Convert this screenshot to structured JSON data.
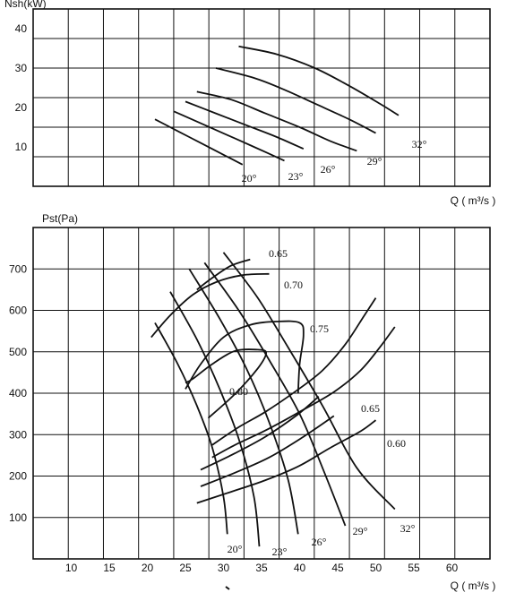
{
  "chart_data": [
    {
      "type": "line",
      "title": "",
      "ylabel": "Nsh(kW)",
      "xlabel": "Q ( m³/s )",
      "ylim": [
        0,
        45
      ],
      "xlim": [
        5,
        65
      ],
      "grid": true,
      "y_ticks": [
        "10",
        "20",
        "30",
        "40"
      ],
      "series": [
        {
          "name": "20°",
          "label": "20°",
          "points": [
            [
              21,
              17
            ],
            [
              24,
              14
            ],
            [
              27,
              11
            ],
            [
              30,
              8
            ],
            [
              32.5,
              5.5
            ]
          ]
        },
        {
          "name": "23°",
          "label": "23°",
          "points": [
            [
              23.5,
              19
            ],
            [
              27,
              16
            ],
            [
              30.5,
              13
            ],
            [
              34,
              10
            ],
            [
              38,
              6.5
            ]
          ]
        },
        {
          "name": "26°",
          "label": "26°",
          "points": [
            [
              25,
              21.5
            ],
            [
              29,
              18.5
            ],
            [
              33,
              15.5
            ],
            [
              37,
              12.5
            ],
            [
              40.5,
              9.5
            ]
          ]
        },
        {
          "name": "29°",
          "label": "29°",
          "points": [
            [
              26.5,
              24
            ],
            [
              31,
              22
            ],
            [
              35.5,
              18.5
            ],
            [
              40,
              15
            ],
            [
              44,
              11.5
            ],
            [
              47.5,
              9
            ]
          ]
        },
        {
          "name": "32°",
          "label": "32°",
          "points": [
            [
              29,
              30
            ],
            [
              34,
              27.5
            ],
            [
              38,
              24.5
            ],
            [
              42,
              21
            ],
            [
              46.5,
              17
            ],
            [
              50,
              13.5
            ]
          ]
        },
        {
          "name": "",
          "label": "",
          "points": [
            [
              32,
              35.5
            ],
            [
              37,
              33.5
            ],
            [
              42,
              30
            ],
            [
              46.5,
              25.5
            ],
            [
              50.5,
              21
            ],
            [
              53,
              18
            ]
          ]
        }
      ]
    },
    {
      "type": "line",
      "title": "",
      "ylabel": "Pst(Pa)",
      "xlabel": "Q ( m³/s )",
      "ylim": [
        0,
        800
      ],
      "xlim": [
        5,
        65
      ],
      "grid": true,
      "x_ticks": [
        "10",
        "15",
        "20",
        "25",
        "30",
        "35",
        "40",
        "45",
        "50",
        "55",
        "60"
      ],
      "y_ticks": [
        "100",
        "200",
        "300",
        "400",
        "500",
        "600",
        "700"
      ],
      "series": [
        {
          "name": "20°",
          "label": "20°",
          "points": [
            [
              21,
              570
            ],
            [
              24,
              470
            ],
            [
              26.5,
              370
            ],
            [
              28.5,
              270
            ],
            [
              30,
              150
            ],
            [
              30.5,
              60
            ]
          ]
        },
        {
          "name": "23°",
          "label": "23°",
          "points": [
            [
              23,
              645
            ],
            [
              26.5,
              530
            ],
            [
              29.5,
              410
            ],
            [
              32,
              290
            ],
            [
              34,
              150
            ],
            [
              34.7,
              30
            ]
          ]
        },
        {
          "name": "26°",
          "label": "26°",
          "points": [
            [
              25.5,
              700
            ],
            [
              29.5,
              580
            ],
            [
              33,
              460
            ],
            [
              36,
              330
            ],
            [
              38.5,
              190
            ],
            [
              39.8,
              60
            ]
          ]
        },
        {
          "name": "29°",
          "label": "29°",
          "points": [
            [
              27.5,
              715
            ],
            [
              32,
              600
            ],
            [
              36,
              480
            ],
            [
              40,
              350
            ],
            [
              43,
              220
            ],
            [
              46,
              80
            ]
          ]
        },
        {
          "name": "32°",
          "label": "32°",
          "points": [
            [
              30,
              740
            ],
            [
              34.5,
              630
            ],
            [
              38.5,
              510
            ],
            [
              43,
              370
            ],
            [
              47.5,
              220
            ],
            [
              52.5,
              120
            ]
          ]
        },
        {
          "name": "η 0.65 (upper)",
          "label": "0.65",
          "points": [
            [
              26.5,
              650
            ],
            [
              28.5,
              678
            ],
            [
              31,
              708
            ],
            [
              33.5,
              723
            ]
          ]
        },
        {
          "name": "η 0.70",
          "label": "0.70",
          "points": [
            [
              20.5,
              535
            ],
            [
              23,
              588
            ],
            [
              26,
              638
            ],
            [
              29,
              668
            ],
            [
              32.5,
              685
            ],
            [
              36,
              688
            ]
          ]
        },
        {
          "name": "η 0.75",
          "label": "0.75",
          "points": [
            [
              25,
              410
            ],
            [
              27,
              470
            ],
            [
              30,
              535
            ],
            [
              33.5,
              565
            ],
            [
              37,
              573
            ],
            [
              40,
              570
            ],
            [
              40.5,
              540
            ],
            [
              40,
              470
            ],
            [
              39.8,
              400
            ]
          ]
        },
        {
          "name": "η 0.80",
          "label": "0.80",
          "points": [
            [
              28,
              340
            ],
            [
              31.5,
              398
            ],
            [
              34.5,
              460
            ],
            [
              35.6,
              497
            ],
            [
              34.5,
              505
            ],
            [
              31.5,
              502
            ],
            [
              28.5,
              470
            ],
            [
              26,
              435
            ],
            [
              25,
              425
            ]
          ]
        },
        {
          "name": "η 0.65 (right)",
          "label": "0.65",
          "points": [
            [
              28.5,
              275
            ],
            [
              32,
              318
            ],
            [
              35.5,
              355
            ],
            [
              39.5,
              405
            ],
            [
              43,
              455
            ],
            [
              46,
              518
            ],
            [
              48.5,
              588
            ],
            [
              50,
              630
            ]
          ]
        },
        {
          "name": "η 0.60",
          "label": "0.60",
          "points": [
            [
              28.5,
              245
            ],
            [
              31.5,
              275
            ],
            [
              35.5,
              310
            ],
            [
              40,
              355
            ],
            [
              44.5,
              403
            ],
            [
              48,
              455
            ],
            [
              50.5,
              510
            ],
            [
              52.5,
              560
            ]
          ]
        },
        {
          "name": "",
          "label": "",
          "points": [
            [
              26.5,
              135
            ],
            [
              31,
              162
            ],
            [
              35.5,
              190
            ],
            [
              40,
              225
            ],
            [
              44,
              268
            ],
            [
              48,
              308
            ],
            [
              50,
              335
            ]
          ]
        },
        {
          "name": "",
          "label": "",
          "points": [
            [
              27,
              175
            ],
            [
              31.5,
              208
            ],
            [
              36,
              245
            ],
            [
              40.5,
              295
            ],
            [
              44.5,
              345
            ]
          ]
        },
        {
          "name": "",
          "label": "",
          "points": [
            [
              27,
              215
            ],
            [
              31.5,
              255
            ],
            [
              35.5,
              295
            ],
            [
              39.5,
              345
            ],
            [
              42.5,
              392
            ]
          ]
        }
      ]
    }
  ]
}
